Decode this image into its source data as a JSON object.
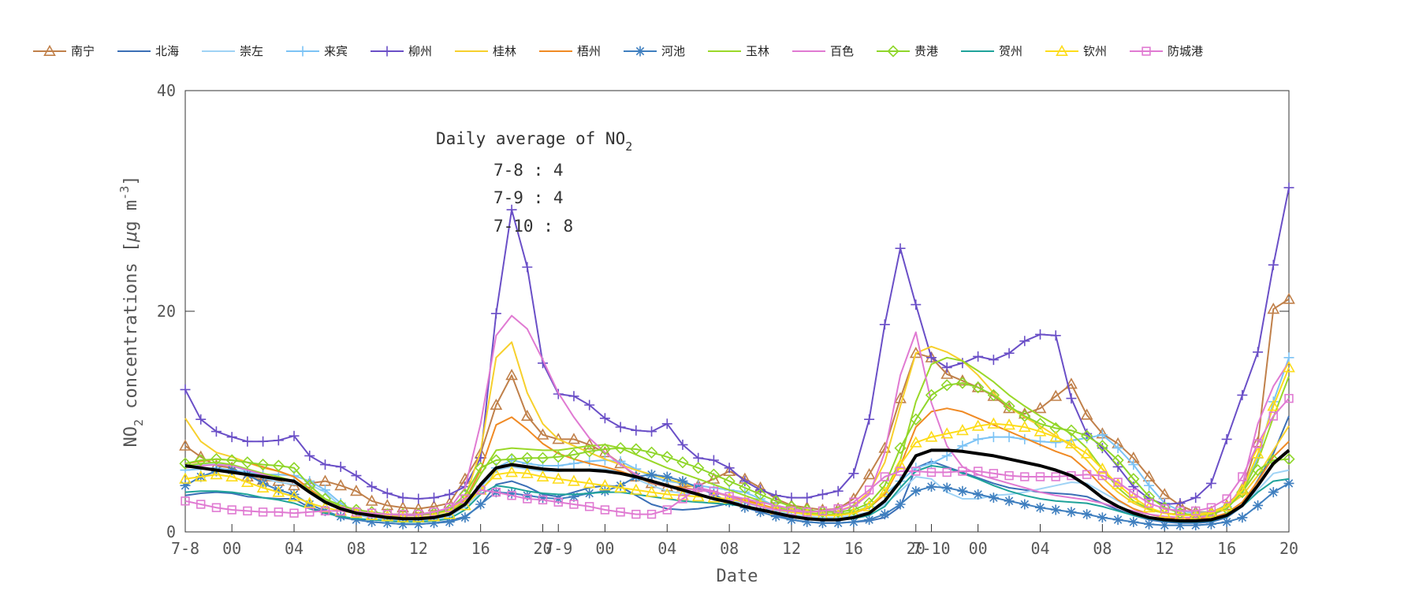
{
  "chart_data": {
    "type": "line",
    "xlabel": "Date",
    "ylabel_main": "NO",
    "ylabel_sub": "2",
    "ylabel_rest": " concentrations [",
    "ylabel_mu": "μ",
    "ylabel_units": "g m",
    "ylabel_exp": "-3",
    "ylabel_close": "]",
    "ylim": [
      0,
      40
    ],
    "yticks": [
      0,
      20,
      40
    ],
    "xlim": [
      0,
      71
    ],
    "xticks": [
      {
        "x": 0,
        "label": "7-8"
      },
      {
        "x": 3,
        "label": "00"
      },
      {
        "x": 7,
        "label": "04"
      },
      {
        "x": 11,
        "label": "08"
      },
      {
        "x": 15,
        "label": "12"
      },
      {
        "x": 19,
        "label": "16"
      },
      {
        "x": 23,
        "label": "20"
      },
      {
        "x": 24,
        "label": "7-9"
      },
      {
        "x": 27,
        "label": "00"
      },
      {
        "x": 31,
        "label": "04"
      },
      {
        "x": 35,
        "label": "08"
      },
      {
        "x": 39,
        "label": "12"
      },
      {
        "x": 43,
        "label": "16"
      },
      {
        "x": 47,
        "label": "20"
      },
      {
        "x": 48,
        "label": "7-10"
      },
      {
        "x": 51,
        "label": "00"
      },
      {
        "x": 55,
        "label": "04"
      },
      {
        "x": 59,
        "label": "08"
      },
      {
        "x": 63,
        "label": "12"
      },
      {
        "x": 67,
        "label": "16"
      },
      {
        "x": 71,
        "label": "20"
      }
    ],
    "grid": false,
    "legend_position": "top",
    "annotation": {
      "title_main": "Daily average of NO",
      "title_sub": "2",
      "lines": [
        "7-8 : 4",
        "7-9 : 4",
        "7-10 : 8"
      ]
    },
    "series": [
      {
        "name": "南宁",
        "color": "#c0804a",
        "marker": "triangle",
        "values": [
          7.8,
          6.8,
          6,
          5.8,
          5,
          4.7,
          4.6,
          4.2,
          4.4,
          4.6,
          4.2,
          3.7,
          2.8,
          2.4,
          2.2,
          2.1,
          2.3,
          2.6,
          4.8,
          7.1,
          11.5,
          14.2,
          10.5,
          8.8,
          8.4,
          8.4,
          7.9,
          7.2,
          6.2,
          5,
          4.4,
          4.1,
          4.1,
          4.2,
          4.8,
          5.5,
          4.8,
          4,
          3,
          2.4,
          2.2,
          2,
          2.1,
          3,
          5.2,
          7.6,
          12.1,
          16.2,
          15.8,
          14.3,
          13.7,
          13.1,
          12.3,
          11.2,
          10.7,
          11.2,
          12.3,
          13.4,
          10.6,
          8.9,
          8,
          6.7,
          5,
          3.4,
          2.4,
          1.8,
          1.8,
          2.4,
          3.9,
          8.1,
          20.2,
          21.1
        ]
      },
      {
        "name": "北海",
        "color": "#3b6fb6",
        "marker": "none",
        "values": [
          3.3,
          3.5,
          3.6,
          3.5,
          3.2,
          3.1,
          3,
          3,
          2.2,
          1.8,
          1.3,
          1.1,
          0.9,
          0.8,
          0.7,
          0.7,
          0.8,
          1,
          1.4,
          2.4,
          4.3,
          4.6,
          4.1,
          3.4,
          3.2,
          3.6,
          4,
          4.2,
          4.1,
          3.3,
          2.5,
          2.1,
          2,
          2.1,
          2.3,
          2.6,
          2.7,
          2.4,
          1.6,
          1.1,
          0.9,
          0.8,
          0.8,
          0.9,
          1,
          1.3,
          2.3,
          5.8,
          6.4,
          5.9,
          5.4,
          4.9,
          4.4,
          4,
          3.8,
          3.6,
          3.5,
          3.4,
          3.2,
          2.6,
          2,
          1.5,
          1.1,
          0.9,
          0.8,
          0.8,
          0.9,
          1.3,
          2.3,
          4.7,
          7.1,
          10.5
        ]
      },
      {
        "name": "崇左",
        "color": "#9fd3f5",
        "marker": "none",
        "values": [
          6,
          6.1,
          6.2,
          6,
          5.5,
          4.9,
          4.5,
          4.3,
          4.3,
          3.6,
          2.3,
          1.6,
          1.2,
          1.1,
          1,
          1,
          1.1,
          1.4,
          2.3,
          3.6,
          5.6,
          5.9,
          5.7,
          5.5,
          5.5,
          5.6,
          5.7,
          5.7,
          5.4,
          4.8,
          4.2,
          3.7,
          3.5,
          3.4,
          3.1,
          2.9,
          2.6,
          2.3,
          1.9,
          1.6,
          1.4,
          1.3,
          1.3,
          1.5,
          1.8,
          2.5,
          3.7,
          5,
          4.8,
          3.6,
          3,
          3,
          3.3,
          3.4,
          3.6,
          3.9,
          4.2,
          4.5,
          4.4,
          3.6,
          2.8,
          2.1,
          1.6,
          1.3,
          1.2,
          1.2,
          1.3,
          1.6,
          2.4,
          3.8,
          5.3,
          5.6
        ]
      },
      {
        "name": "来宾",
        "color": "#7cc3f5",
        "marker": "plus",
        "values": [
          5.6,
          5.7,
          5.8,
          5.6,
          5.4,
          5.2,
          5.2,
          5.1,
          4.6,
          3.8,
          2.6,
          1.8,
          1.4,
          1.2,
          1.1,
          1.1,
          1.2,
          1.5,
          2.6,
          4,
          5.8,
          6.5,
          6.2,
          6,
          6,
          6.2,
          6.4,
          6.5,
          6.4,
          5.7,
          5,
          4.6,
          4.4,
          4.2,
          4,
          3.8,
          3.6,
          3,
          2.3,
          1.8,
          1.6,
          1.5,
          1.5,
          1.8,
          2.3,
          3.4,
          4.6,
          5.8,
          6.2,
          6.9,
          7.8,
          8.4,
          8.6,
          8.6,
          8.4,
          8.2,
          8.1,
          8.3,
          8.5,
          8.8,
          7.6,
          6.1,
          4.2,
          2.6,
          1.9,
          1.7,
          1.8,
          2.3,
          3.6,
          6.7,
          11.8,
          15.8
        ]
      },
      {
        "name": "柳州",
        "color": "#6a4fc7",
        "marker": "plus",
        "values": [
          12.9,
          10.2,
          9.1,
          8.6,
          8.2,
          8.2,
          8.3,
          8.7,
          6.9,
          6.1,
          5.9,
          5.1,
          4.1,
          3.5,
          3.1,
          3,
          3.1,
          3.4,
          4.1,
          6.7,
          19.8,
          29.2,
          24,
          15.3,
          12.5,
          12.3,
          11.5,
          10.3,
          9.5,
          9.2,
          9.1,
          9.8,
          7.9,
          6.7,
          6.5,
          5.8,
          4.6,
          3.8,
          3.3,
          3.1,
          3.1,
          3.4,
          3.7,
          5.3,
          10.2,
          18.8,
          25.7,
          20.6,
          15.8,
          14.9,
          15.3,
          15.9,
          15.6,
          16.2,
          17.3,
          17.9,
          17.8,
          12.1,
          8.9,
          7.6,
          5.9,
          4.1,
          3,
          2.5,
          2.6,
          3.1,
          4.4,
          8.4,
          12.4,
          16.3,
          24.2,
          31.2
        ]
      },
      {
        "name": "桂林",
        "color": "#f7d02d",
        "marker": "none",
        "values": [
          10.3,
          8.2,
          7.2,
          6.8,
          6.3,
          5.8,
          5.5,
          5,
          3.8,
          2.9,
          2.3,
          1.9,
          1.7,
          1.5,
          1.5,
          1.5,
          1.6,
          1.9,
          3.1,
          7.3,
          15.8,
          17.2,
          12.6,
          9.8,
          8.4,
          7.8,
          7.2,
          6.6,
          6.1,
          5.6,
          5.2,
          4.8,
          4.4,
          4,
          3.6,
          3.2,
          2.8,
          2.4,
          2.1,
          1.9,
          1.8,
          1.8,
          1.9,
          2.4,
          3.6,
          6.3,
          11.4,
          16.2,
          16.8,
          16.3,
          15.5,
          14.2,
          12.6,
          11.3,
          10.4,
          9.6,
          8.7,
          7.8,
          6.5,
          4.9,
          3.6,
          2.6,
          2,
          1.7,
          1.6,
          1.6,
          1.8,
          2.3,
          3.3,
          5.1,
          7.4,
          9.6
        ]
      },
      {
        "name": "梧州",
        "color": "#f08a24",
        "marker": "none",
        "values": [
          6.2,
          6.4,
          6.6,
          6.5,
          6.3,
          5.9,
          5.5,
          5,
          3.9,
          2.9,
          2.2,
          1.8,
          1.6,
          1.4,
          1.3,
          1.3,
          1.4,
          1.7,
          2.9,
          5.6,
          9.7,
          10.4,
          9.3,
          8,
          7.1,
          6.6,
          6.2,
          5.9,
          5.5,
          5,
          4.5,
          4.2,
          4,
          3.8,
          3.6,
          3.3,
          2.9,
          2.5,
          2.1,
          1.8,
          1.6,
          1.5,
          1.5,
          1.7,
          2.2,
          3.4,
          6,
          9.5,
          10.9,
          11.2,
          10.9,
          10.3,
          9.7,
          9.1,
          8.5,
          7.9,
          7.3,
          6.8,
          5.6,
          4.1,
          2.9,
          2.1,
          1.6,
          1.3,
          1.2,
          1.2,
          1.3,
          1.7,
          2.7,
          4.6,
          6.8,
          8.2
        ]
      },
      {
        "name": "河池",
        "color": "#3f7fbf",
        "marker": "star",
        "values": [
          4.2,
          5,
          5.5,
          5.6,
          5.2,
          4.4,
          3.8,
          3.4,
          2.5,
          1.9,
          1.4,
          1.1,
          0.9,
          0.8,
          0.7,
          0.7,
          0.8,
          0.9,
          1.3,
          2.5,
          3.6,
          3.5,
          3.3,
          3.1,
          3,
          3.2,
          3.5,
          3.7,
          4.2,
          5,
          5.2,
          5,
          4.6,
          4,
          3.4,
          2.7,
          2.2,
          1.8,
          1.4,
          1.1,
          0.9,
          0.8,
          0.8,
          0.9,
          1.1,
          1.6,
          2.5,
          3.7,
          4.1,
          4,
          3.7,
          3.4,
          3.1,
          2.8,
          2.5,
          2.2,
          2,
          1.8,
          1.6,
          1.3,
          1.1,
          0.9,
          0.7,
          0.6,
          0.6,
          0.6,
          0.7,
          0.9,
          1.3,
          2.4,
          3.6,
          4.4
        ]
      },
      {
        "name": "玉林",
        "color": "#9ad829",
        "marker": "none",
        "values": [
          6,
          6.2,
          6.3,
          6.1,
          5.7,
          5.3,
          5,
          4.6,
          3.7,
          2.9,
          2.3,
          1.9,
          1.6,
          1.4,
          1.3,
          1.3,
          1.4,
          1.7,
          2.8,
          5.2,
          7.4,
          7.6,
          7.5,
          7.4,
          7.4,
          7.6,
          7.8,
          7.9,
          7.6,
          7,
          6.4,
          5.8,
          5.3,
          4.8,
          4.3,
          3.8,
          3.3,
          2.8,
          2.3,
          1.9,
          1.7,
          1.6,
          1.6,
          1.8,
          2.3,
          3.6,
          6.5,
          11.8,
          15.2,
          15.8,
          15.5,
          14.6,
          13.6,
          12.4,
          11.4,
          10.5,
          9.7,
          8.9,
          7.6,
          5.7,
          4,
          2.8,
          2.1,
          1.7,
          1.5,
          1.5,
          1.7,
          2.3,
          3.6,
          6.4,
          10.4,
          14.1
        ]
      },
      {
        "name": "百色",
        "color": "#e07ad2",
        "marker": "none",
        "values": [
          5.8,
          6,
          6.1,
          6,
          5.6,
          5.2,
          4.8,
          4.5,
          3.6,
          2.8,
          2.2,
          1.9,
          1.7,
          1.6,
          1.5,
          1.5,
          1.7,
          2.1,
          4,
          9.8,
          17.8,
          19.6,
          18.4,
          15.6,
          12.6,
          10.4,
          8.5,
          7.2,
          6.1,
          5.2,
          4.5,
          4.1,
          3.9,
          3.8,
          3.6,
          3.3,
          3,
          2.7,
          2.4,
          2.1,
          1.9,
          1.8,
          1.9,
          2.3,
          3.4,
          7.2,
          14.2,
          18.1,
          11.7,
          7.8,
          5.9,
          5.2,
          4.8,
          4.4,
          4,
          3.6,
          3.3,
          3.1,
          2.9,
          2.6,
          2.2,
          1.9,
          1.6,
          1.4,
          1.3,
          1.3,
          1.5,
          2.1,
          4.2,
          9.8,
          13.2,
          15.4
        ]
      },
      {
        "name": "贵港",
        "color": "#8fd62a",
        "marker": "diamond",
        "values": [
          6.2,
          6.5,
          6.6,
          6.5,
          6.3,
          6.1,
          6,
          5.8,
          4.2,
          3,
          2.4,
          2,
          1.8,
          1.6,
          1.6,
          1.6,
          1.7,
          2,
          3.4,
          5.8,
          6.5,
          6.6,
          6.7,
          6.7,
          6.8,
          7,
          7.3,
          7.5,
          7.6,
          7.5,
          7.2,
          6.8,
          6.3,
          5.8,
          5.2,
          4.6,
          4,
          3.4,
          2.8,
          2.3,
          2,
          1.8,
          1.8,
          2,
          2.6,
          4.2,
          7.6,
          10.2,
          12.4,
          13.3,
          13.5,
          13.1,
          12.4,
          11.4,
          10.5,
          9.8,
          9.4,
          9.2,
          8.7,
          7.8,
          6.5,
          4.8,
          3.2,
          2.2,
          1.7,
          1.5,
          1.6,
          2.1,
          3.6,
          5.6,
          6.5,
          6.6
        ]
      },
      {
        "name": "贺州",
        "color": "#1fa39a",
        "marker": "none",
        "values": [
          3.6,
          3.7,
          3.7,
          3.6,
          3.4,
          3.1,
          2.9,
          2.6,
          2.1,
          1.7,
          1.4,
          1.2,
          1.1,
          1,
          0.9,
          0.9,
          1,
          1.2,
          2,
          3.4,
          4.2,
          4,
          3.7,
          3.5,
          3.4,
          3.4,
          3.5,
          3.6,
          3.6,
          3.4,
          3.2,
          3,
          2.8,
          2.7,
          2.6,
          2.5,
          2.3,
          2,
          1.7,
          1.4,
          1.2,
          1.1,
          1.1,
          1.2,
          1.5,
          2.3,
          4,
          5.5,
          6,
          5.8,
          5.3,
          4.8,
          4.2,
          3.7,
          3.3,
          3,
          2.8,
          2.7,
          2.6,
          2.3,
          1.9,
          1.5,
          1.2,
          1,
          0.9,
          0.9,
          1,
          1.4,
          2.3,
          3.6,
          4.6,
          4.8
        ]
      },
      {
        "name": "钦州",
        "color": "#fddc1a",
        "marker": "triangle",
        "values": [
          4.8,
          5,
          5.2,
          5,
          4.5,
          4,
          3.6,
          3.2,
          2.6,
          2.2,
          1.9,
          1.7,
          1.5,
          1.4,
          1.3,
          1.3,
          1.4,
          1.6,
          2.4,
          3.8,
          5.2,
          5.4,
          5.3,
          5,
          4.8,
          4.6,
          4.4,
          4.2,
          4,
          3.8,
          3.6,
          3.4,
          3.3,
          3.2,
          3.1,
          3,
          2.7,
          2.4,
          2,
          1.8,
          1.6,
          1.5,
          1.5,
          1.7,
          2.3,
          3.6,
          6.1,
          8.1,
          8.6,
          8.9,
          9.2,
          9.6,
          9.8,
          9.7,
          9.5,
          9.1,
          8.6,
          8,
          7.1,
          5.7,
          4.3,
          3.1,
          2.2,
          1.7,
          1.5,
          1.5,
          1.7,
          2.3,
          3.8,
          7.1,
          11.4,
          14.9
        ]
      },
      {
        "name": "防城港",
        "color": "#e07ad2",
        "marker": "square",
        "values": [
          2.8,
          2.5,
          2.2,
          2,
          1.9,
          1.8,
          1.8,
          1.7,
          1.8,
          1.9,
          1.9,
          1.8,
          1.7,
          1.6,
          1.6,
          1.6,
          1.8,
          2.2,
          3,
          3.8,
          3.6,
          3.3,
          3,
          2.9,
          2.7,
          2.5,
          2.3,
          2,
          1.8,
          1.6,
          1.6,
          2,
          3,
          4,
          3.7,
          3.2,
          2.7,
          2.3,
          2,
          1.9,
          1.8,
          1.9,
          2.1,
          2.7,
          3.8,
          5,
          5.5,
          5.5,
          5.4,
          5.4,
          5.5,
          5.5,
          5.3,
          5.1,
          5,
          5,
          5,
          5.1,
          5.2,
          5.1,
          4.5,
          3.5,
          2.6,
          2.1,
          1.9,
          1.9,
          2.2,
          3,
          5,
          8,
          10.5,
          12.1
        ]
      },
      {
        "name": "",
        "color": "#000000",
        "marker": "none",
        "values": [
          6,
          5.8,
          5.6,
          5.4,
          5.2,
          5,
          4.8,
          4.6,
          3.6,
          2.7,
          2.1,
          1.7,
          1.5,
          1.3,
          1.2,
          1.2,
          1.3,
          1.6,
          2.5,
          4.3,
          5.8,
          6.1,
          5.9,
          5.7,
          5.6,
          5.6,
          5.6,
          5.5,
          5.3,
          5,
          4.6,
          4.2,
          3.8,
          3.4,
          3,
          2.7,
          2.3,
          2,
          1.7,
          1.4,
          1.2,
          1.1,
          1.1,
          1.3,
          1.7,
          2.8,
          4.6,
          6.9,
          7.4,
          7.4,
          7.3,
          7.1,
          6.9,
          6.6,
          6.3,
          6,
          5.6,
          5.1,
          4.2,
          3.1,
          2.3,
          1.7,
          1.3,
          1.1,
          1,
          1,
          1.1,
          1.5,
          2.4,
          4.2,
          6.2,
          7.4
        ]
      }
    ]
  }
}
